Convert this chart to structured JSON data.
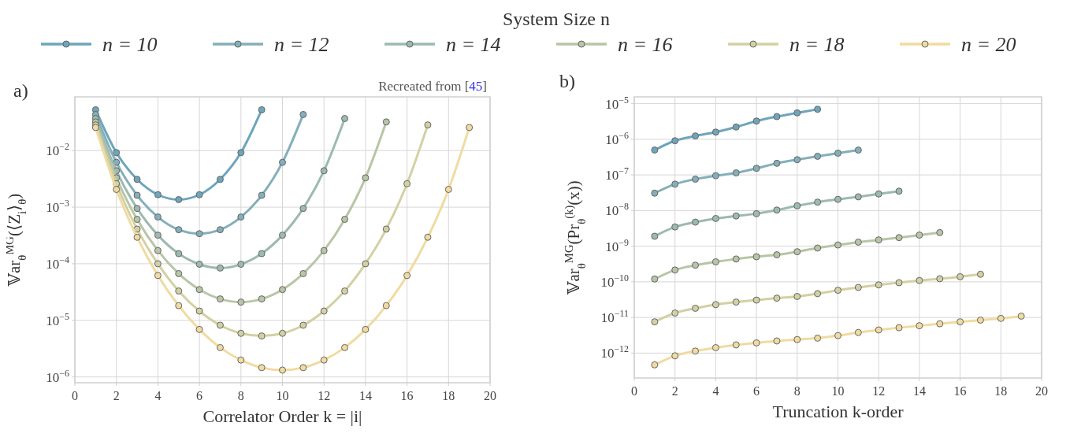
{
  "chart_data": [
    {
      "type": "line",
      "title": "a)",
      "xlabel": "Correlator Order k = |i|",
      "ylabel": "𝕍ar$_{θ}$$^{MG}$(⟨Z$_{i}$⟩$_{θ}$)",
      "legend_title": "System Size n",
      "legend": "top",
      "grid": true,
      "marker": "circle",
      "log": "y",
      "annotations": [
        "Recreated from [45]"
      ],
      "xlim": [
        0,
        20
      ],
      "xticks": [
        0,
        2,
        4,
        6,
        8,
        10,
        12,
        14,
        16,
        18,
        20
      ],
      "ylim": [
        7.9e-07,
        0.089
      ],
      "yticks": [
        {
          "value": 1e-06,
          "label": "10$^{−6}$"
        },
        {
          "value": 1e-05,
          "label": "10$^{−5}$"
        },
        {
          "value": 0.0001,
          "label": "10$^{−4}$"
        },
        {
          "value": 0.001,
          "label": "10$^{−3}$"
        },
        {
          "value": 0.01,
          "label": "10$^{−2}$"
        }
      ],
      "series": [
        {
          "name": "n = 10",
          "color": "#6ea5bb",
          "x": [
            1,
            2,
            3,
            4,
            5,
            6,
            7,
            8,
            9
          ],
          "values": [
            0.0526,
            0.0092,
            0.0031,
            0.00166,
            0.00136,
            0.00166,
            0.0031,
            0.0092,
            0.0526
          ]
        },
        {
          "name": "n = 12",
          "color": "#84afba",
          "x": [
            1,
            2,
            3,
            4,
            5,
            6,
            7,
            8,
            9,
            10,
            11
          ],
          "values": [
            0.0434,
            0.0062,
            0.00162,
            0.00067,
            0.0004,
            0.00034,
            0.0004,
            0.00067,
            0.00162,
            0.0062,
            0.0434
          ]
        },
        {
          "name": "n = 14",
          "color": "#9dbab0",
          "x": [
            1,
            2,
            3,
            4,
            5,
            6,
            7,
            8,
            9,
            10,
            11,
            12,
            13
          ],
          "values": [
            0.0369,
            0.0044,
            0.00095,
            0.00032,
            0.000151,
            9.8e-05,
            8.4e-05,
            9.8e-05,
            0.000151,
            0.00032,
            0.00095,
            0.0044,
            0.0369
          ]
        },
        {
          "name": "n = 16",
          "color": "#b7c6a6",
          "x": [
            1,
            2,
            3,
            4,
            5,
            6,
            7,
            8,
            9,
            10,
            11,
            12,
            13,
            14,
            15
          ],
          "values": [
            0.0321,
            0.0033,
            0.00061,
            0.000171,
            6.7e-05,
            3.5e-05,
            2.39e-05,
            2.1e-05,
            2.39e-05,
            3.5e-05,
            6.7e-05,
            0.000171,
            0.00061,
            0.0033,
            0.0321
          ]
        },
        {
          "name": "n = 18",
          "color": "#d3d0a3",
          "x": [
            1,
            2,
            3,
            4,
            5,
            6,
            7,
            8,
            9,
            10,
            11,
            12,
            13,
            14,
            15,
            16,
            17
          ],
          "values": [
            0.0284,
            0.0026,
            0.00041,
            0.0001,
            3.3e-05,
            1.46e-05,
            8.2e-06,
            5.9e-06,
            5.3e-06,
            5.9e-06,
            8.2e-06,
            1.46e-05,
            3.3e-05,
            0.0001,
            0.00041,
            0.0026,
            0.0284
          ]
        },
        {
          "name": "n = 20",
          "color": "#f0dba0",
          "x": [
            1,
            2,
            3,
            4,
            5,
            6,
            7,
            8,
            9,
            10,
            11,
            12,
            13,
            14,
            15,
            16,
            17,
            18,
            19
          ],
          "values": [
            0.0256,
            0.00206,
            0.000294,
            6.2e-05,
            1.82e-05,
            6.9e-06,
            3.3e-06,
            1.99e-06,
            1.46e-06,
            1.32e-06,
            1.46e-06,
            1.99e-06,
            3.3e-06,
            6.9e-06,
            1.82e-05,
            6.2e-05,
            0.000294,
            0.00206,
            0.0256
          ]
        }
      ]
    },
    {
      "type": "line",
      "title": "b)",
      "xlabel": "Truncation k-order",
      "ylabel": "𝕍ar$_{θ}$$^{MG}$(Pr$_{θ}$$^{(k)}$(x))",
      "grid": true,
      "marker": "circle",
      "log": "y",
      "xlim": [
        0,
        20
      ],
      "xticks": [
        0,
        2,
        4,
        6,
        8,
        10,
        12,
        14,
        16,
        18,
        20
      ],
      "ylim": [
        2e-13,
        1.55e-05
      ],
      "yticks": [
        {
          "value": 1e-12,
          "label": "10$^{−12}$"
        },
        {
          "value": 1e-11,
          "label": "10$^{−11}$"
        },
        {
          "value": 1e-10,
          "label": "10$^{−10}$"
        },
        {
          "value": 1e-09,
          "label": "10$^{−9}$"
        },
        {
          "value": 1e-08,
          "label": "10$^{−8}$"
        },
        {
          "value": 1e-07,
          "label": "10$^{−7}$"
        },
        {
          "value": 1e-06,
          "label": "10$^{−6}$"
        },
        {
          "value": 1e-05,
          "label": "10$^{−5}$"
        }
      ],
      "series": [
        {
          "color": "#6ea5bb",
          "x": [
            1,
            2,
            3,
            4,
            5,
            6,
            7,
            8,
            9
          ],
          "values": [
            5e-07,
            9.1e-07,
            1.24e-06,
            1.59e-06,
            2.21e-06,
            3.24e-06,
            4.33e-06,
            5.5e-06,
            6.95e-06
          ]
        },
        {
          "color": "#84afba",
          "x": [
            1,
            2,
            3,
            4,
            5,
            6,
            7,
            8,
            9,
            10,
            11
          ],
          "values": [
            3.08e-08,
            5.5e-08,
            7.6e-08,
            9.5e-08,
            1.14e-07,
            1.53e-07,
            2.12e-07,
            2.68e-07,
            3.33e-07,
            4.07e-07,
            4.98e-07
          ]
        },
        {
          "color": "#9dbab0",
          "x": [
            1,
            2,
            3,
            4,
            5,
            6,
            7,
            8,
            9,
            10,
            11,
            12,
            13
          ],
          "values": [
            1.9e-09,
            3.47e-09,
            4.73e-09,
            5.99e-09,
            7.05e-09,
            8.16e-09,
            1.03e-08,
            1.36e-08,
            1.72e-08,
            2.06e-08,
            2.43e-08,
            2.92e-08,
            3.49e-08
          ]
        },
        {
          "color": "#b7c6a6",
          "x": [
            1,
            2,
            3,
            4,
            5,
            6,
            7,
            8,
            9,
            10,
            11,
            12,
            13,
            14,
            15
          ],
          "values": [
            1.2e-10,
            2.15e-10,
            2.92e-10,
            3.64e-10,
            4.37e-10,
            5.05e-10,
            5.73e-10,
            7e-10,
            8.87e-10,
            1.08e-09,
            1.3e-09,
            1.5e-09,
            1.74e-09,
            2.05e-09,
            2.41e-09
          ]
        },
        {
          "color": "#d3d0a3",
          "x": [
            1,
            2,
            3,
            4,
            5,
            6,
            7,
            8,
            9,
            10,
            11,
            12,
            13,
            14,
            15,
            16,
            17
          ],
          "values": [
            7.55e-12,
            1.33e-11,
            1.81e-11,
            2.29e-11,
            2.7e-11,
            3.07e-11,
            3.48e-11,
            3.88e-11,
            4.66e-11,
            5.79e-11,
            6.95e-11,
            8.2e-11,
            9.46e-11,
            1.09e-10,
            1.22e-10,
            1.39e-10,
            1.63e-10
          ]
        },
        {
          "color": "#f0dba0",
          "x": [
            1,
            2,
            3,
            4,
            5,
            6,
            7,
            8,
            9,
            10,
            11,
            12,
            13,
            14,
            15,
            16,
            17,
            18,
            19
          ],
          "values": [
            4.68e-13,
            8.4e-13,
            1.14e-12,
            1.42e-12,
            1.7e-12,
            1.93e-12,
            2.19e-12,
            2.4e-12,
            2.63e-12,
            3.1e-12,
            3.78e-12,
            4.46e-12,
            5.16e-12,
            5.86e-12,
            6.65e-12,
            7.55e-12,
            8.43e-12,
            9.4e-12,
            1.09e-11
          ]
        }
      ]
    }
  ]
}
